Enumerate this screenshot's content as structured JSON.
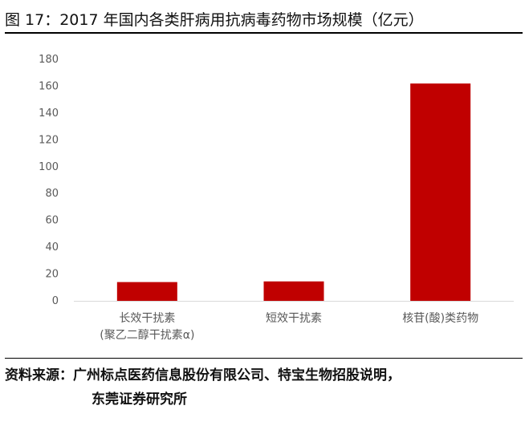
{
  "header": {
    "figure_title": "图 17：2017 年国内各类肝病用抗病毒药物市场规模（亿元）"
  },
  "chart_data": {
    "type": "bar",
    "title": "",
    "xlabel": "",
    "ylabel": "",
    "categories": [
      [
        "长效干扰素",
        "(聚乙二醇干扰素α)"
      ],
      [
        "短效干扰素"
      ],
      [
        "核苷(酸)类药物"
      ]
    ],
    "values": [
      14,
      14.5,
      162
    ],
    "ylim": [
      0,
      180
    ],
    "yticks": [
      0,
      20,
      40,
      60,
      80,
      100,
      120,
      140,
      160,
      180
    ],
    "grid": false,
    "legend": "none",
    "bar_color": "#C00000"
  },
  "footer": {
    "source_line1": "资料来源：广州标点医药信息股份有限公司、特宝生物招股说明，",
    "source_line2": "东莞证券研究所"
  }
}
